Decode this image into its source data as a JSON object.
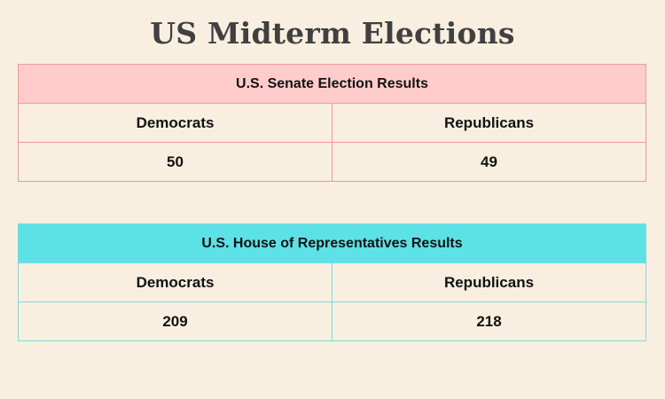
{
  "title": "US Midterm Elections",
  "colors": {
    "background": "#f8efe0",
    "senate_header": "#ffcccb",
    "senate_border": "#ef9a9a",
    "house_header": "#5ce1e6",
    "house_border": "#7fd8df"
  },
  "chart_data": {
    "type": "table",
    "title": "US Midterm Elections",
    "tables": [
      {
        "title": "U.S. Senate Election Results",
        "columns": [
          "Democrats",
          "Republicans"
        ],
        "values": [
          "50",
          "49"
        ]
      },
      {
        "title": "U.S. House of Representatives Results",
        "columns": [
          "Democrats",
          "Republicans"
        ],
        "values": [
          "209",
          "218"
        ]
      }
    ]
  }
}
